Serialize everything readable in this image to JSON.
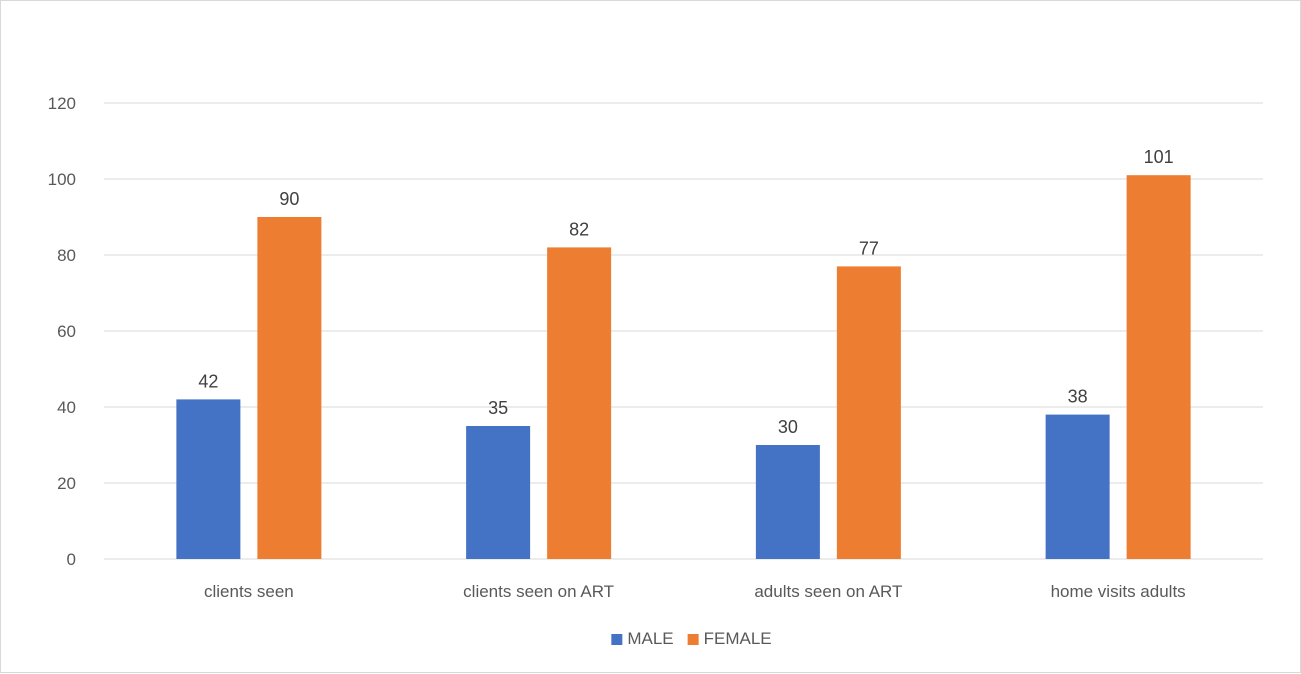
{
  "chart_data": {
    "type": "bar",
    "title": "",
    "xlabel": "",
    "ylabel": "",
    "categories": [
      "clients seen",
      "clients seen on ART",
      "adults seen on ART",
      "home visits adults"
    ],
    "series": [
      {
        "name": "MALE",
        "values": [
          42,
          35,
          30,
          38
        ],
        "color": "#4472c4"
      },
      {
        "name": "FEMALE",
        "values": [
          90,
          82,
          77,
          101
        ],
        "color": "#ed7d31"
      }
    ],
    "ylim": [
      0,
      120
    ],
    "yticks": [
      0,
      20,
      40,
      60,
      80,
      100,
      120
    ],
    "grid": true,
    "legend": "bottom",
    "data_labels": true,
    "gridline_color": "#d9d9d9"
  }
}
